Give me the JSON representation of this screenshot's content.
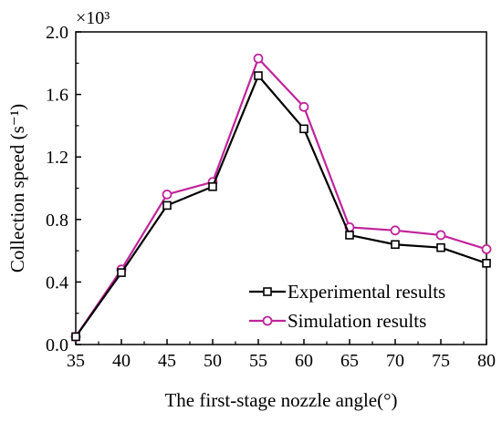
{
  "chart_data": {
    "type": "line",
    "title": "",
    "xlabel": "The first-stage nozzle angle(°)",
    "ylabel": "Collection speed (s⁻¹)",
    "y_multiplier": "×10³",
    "x": [
      35,
      40,
      45,
      50,
      55,
      60,
      65,
      70,
      75,
      80
    ],
    "xlim": [
      35,
      80
    ],
    "ylim": [
      0.0,
      2.0
    ],
    "x_ticks": [
      "35",
      "40",
      "45",
      "50",
      "55",
      "60",
      "65",
      "70",
      "75",
      "80"
    ],
    "y_ticks": [
      "0.0",
      "0.4",
      "0.8",
      "1.2",
      "1.6",
      "2.0"
    ],
    "grid": false,
    "legend_position": "bottom-right",
    "series": [
      {
        "name": "Experimental results",
        "color": "#000000",
        "marker": "square",
        "values": [
          0.05,
          0.46,
          0.89,
          1.01,
          1.72,
          1.38,
          0.7,
          0.64,
          0.62,
          0.52
        ]
      },
      {
        "name": "Simulation results",
        "color": "#c0249b",
        "marker": "circle",
        "values": [
          0.05,
          0.48,
          0.96,
          1.04,
          1.83,
          1.52,
          0.75,
          0.73,
          0.7,
          0.61
        ]
      }
    ]
  }
}
